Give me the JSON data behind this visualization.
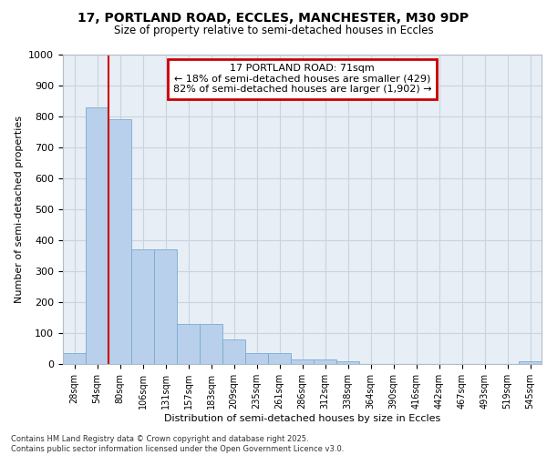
{
  "title_line1": "17, PORTLAND ROAD, ECCLES, MANCHESTER, M30 9DP",
  "title_line2": "Size of property relative to semi-detached houses in Eccles",
  "xlabel": "Distribution of semi-detached houses by size in Eccles",
  "ylabel": "Number of semi-detached properties",
  "categories": [
    "28sqm",
    "54sqm",
    "80sqm",
    "106sqm",
    "131sqm",
    "157sqm",
    "183sqm",
    "209sqm",
    "235sqm",
    "261sqm",
    "286sqm",
    "312sqm",
    "338sqm",
    "364sqm",
    "390sqm",
    "416sqm",
    "442sqm",
    "467sqm",
    "493sqm",
    "519sqm",
    "545sqm"
  ],
  "values": [
    35,
    830,
    790,
    370,
    370,
    130,
    130,
    80,
    35,
    35,
    15,
    15,
    8,
    0,
    0,
    0,
    0,
    0,
    0,
    0,
    8
  ],
  "bar_color": "#b8d0eb",
  "bar_edge_color": "#7aabcf",
  "grid_color": "#c8d4e0",
  "background_color": "#e8eef5",
  "vline_color": "#cc0000",
  "vline_x_index": 1.5,
  "annotation_title": "17 PORTLAND ROAD: 71sqm",
  "annotation_line2": "← 18% of semi-detached houses are smaller (429)",
  "annotation_line3": "82% of semi-detached houses are larger (1,902) →",
  "annotation_box_color": "#cc0000",
  "ylim": [
    0,
    1000
  ],
  "footer_line1": "Contains HM Land Registry data © Crown copyright and database right 2025.",
  "footer_line2": "Contains public sector information licensed under the Open Government Licence v3.0."
}
